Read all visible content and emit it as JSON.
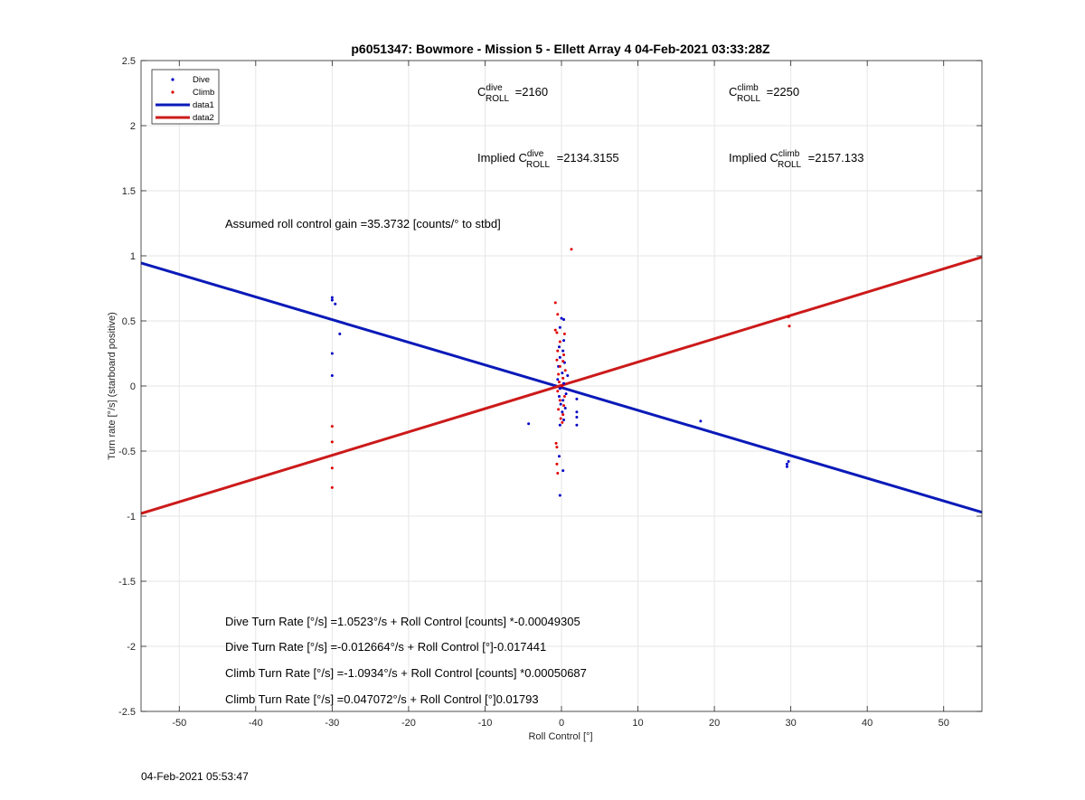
{
  "chart_data": {
    "type": "scatter",
    "title": "p6051347: Bowmore - Mission 5 - Ellett Array 4 04-Feb-2021 03:33:28Z",
    "xlabel": "Roll Control [°]",
    "ylabel": "Turn rate [°/s] (starboard positive)",
    "xlim": [
      -55,
      55
    ],
    "ylim": [
      -2.5,
      2.5
    ],
    "xticks": [
      "-50",
      "-40",
      "-30",
      "-20",
      "-10",
      "0",
      "10",
      "20",
      "30",
      "40",
      "50"
    ],
    "yticks": [
      "2.5",
      "2",
      "1.5",
      "1",
      "0.5",
      "0",
      "-0.5",
      "-1",
      "-1.5",
      "-2",
      "-2.5"
    ],
    "grid": true,
    "legend_position": "top-left",
    "legend": [
      "Dive",
      "Climb",
      "data1",
      "data2"
    ],
    "colors": {
      "dive": "#0000c8",
      "climb": "#e00000",
      "fit_dive": "#0a1ab8",
      "fit_climb": "#cc1a1a"
    },
    "series": [
      {
        "name": "Dive",
        "kind": "points",
        "points": [
          [
            -30,
            0.68
          ],
          [
            -30,
            0.66
          ],
          [
            -29.6,
            0.63
          ],
          [
            -29,
            0.4
          ],
          [
            -30,
            0.25
          ],
          [
            -30,
            0.08
          ],
          [
            -4.3,
            -0.29
          ],
          [
            0,
            0.52
          ],
          [
            0.3,
            0.51
          ],
          [
            -0.2,
            0.45
          ],
          [
            0.3,
            0.35
          ],
          [
            -0.3,
            0.3
          ],
          [
            0.2,
            0.27
          ],
          [
            -0.2,
            0.22
          ],
          [
            0.4,
            0.18
          ],
          [
            -0.4,
            0.15
          ],
          [
            0.1,
            0.1
          ],
          [
            0.8,
            0.08
          ],
          [
            -0.5,
            0.05
          ],
          [
            0.3,
            0.02
          ],
          [
            -0.2,
            -0.02
          ],
          [
            0.6,
            -0.06
          ],
          [
            -0.3,
            -0.08
          ],
          [
            0.2,
            -0.11
          ],
          [
            -0.1,
            -0.14
          ],
          [
            0.5,
            -0.17
          ],
          [
            0.1,
            -0.2
          ],
          [
            0.3,
            -0.26
          ],
          [
            -0.2,
            -0.3
          ],
          [
            -0.3,
            -0.54
          ],
          [
            0.2,
            -0.65
          ],
          [
            -0.2,
            -0.84
          ],
          [
            2,
            -0.1
          ],
          [
            2,
            -0.2
          ],
          [
            2,
            -0.24
          ],
          [
            2,
            -0.3
          ],
          [
            18.2,
            -0.27
          ],
          [
            29.5,
            -0.6
          ],
          [
            29.7,
            -0.58
          ],
          [
            29.5,
            -0.62
          ]
        ]
      },
      {
        "name": "Climb",
        "kind": "points",
        "points": [
          [
            1.3,
            1.05
          ],
          [
            -0.8,
            0.64
          ],
          [
            -0.5,
            0.55
          ],
          [
            -0.8,
            0.43
          ],
          [
            -0.6,
            0.41
          ],
          [
            0.4,
            0.4
          ],
          [
            -0.2,
            0.34
          ],
          [
            -0.5,
            0.27
          ],
          [
            0.3,
            0.24
          ],
          [
            -0.6,
            0.2
          ],
          [
            0.2,
            0.19
          ],
          [
            -0.2,
            0.15
          ],
          [
            0.5,
            0.12
          ],
          [
            -0.4,
            0.09
          ],
          [
            0.2,
            0.06
          ],
          [
            -0.3,
            0.03
          ],
          [
            0.1,
            0
          ],
          [
            -0.5,
            -0.04
          ],
          [
            0.4,
            -0.08
          ],
          [
            -0.2,
            -0.11
          ],
          [
            0.3,
            -0.15
          ],
          [
            -0.4,
            -0.18
          ],
          [
            0.2,
            -0.22
          ],
          [
            -0.1,
            -0.25
          ],
          [
            0.1,
            -0.28
          ],
          [
            -0.7,
            -0.44
          ],
          [
            -0.6,
            -0.47
          ],
          [
            -0.6,
            -0.6
          ],
          [
            -0.5,
            -0.67
          ],
          [
            -30,
            -0.31
          ],
          [
            -30,
            -0.43
          ],
          [
            -30,
            -0.63
          ],
          [
            -30,
            -0.78
          ],
          [
            29.8,
            0.46
          ],
          [
            29.7,
            0.53
          ]
        ]
      },
      {
        "name": "data1",
        "kind": "line",
        "points": [
          [
            -55,
            0.945
          ],
          [
            55,
            -0.97
          ]
        ]
      },
      {
        "name": "data2",
        "kind": "line",
        "points": [
          [
            -55,
            -0.98
          ],
          [
            55,
            0.99
          ]
        ]
      }
    ],
    "annotations": {
      "c_dive": {
        "prefix": "",
        "base": "C",
        "sup": "dive",
        "sub": "ROLL",
        "suffix": " =2160"
      },
      "c_climb": {
        "prefix": "",
        "base": "C",
        "sup": "climb",
        "sub": "ROLL",
        "suffix": " =2250"
      },
      "implied_dive": {
        "prefix": "Implied ",
        "base": "C",
        "sup": "dive",
        "sub": "ROLL",
        "suffix": " =2134.3155"
      },
      "implied_climb": {
        "prefix": "Implied ",
        "base": "C",
        "sup": "climb",
        "sub": "ROLL",
        "suffix": " =2157.133"
      },
      "gain": "Assumed roll control gain =35.3732 [counts/° to stbd]",
      "eq1": "Dive Turn Rate [°/s] =1.0523°/s + Roll Control [counts] *-0.00049305",
      "eq2": "Dive Turn Rate [°/s] =-0.012664°/s + Roll Control [°]-0.017441",
      "eq3": "Climb Turn Rate [°/s] =-1.0934°/s + Roll Control [counts] *0.00050687",
      "eq4": "Climb Turn Rate [°/s] =0.047072°/s + Roll Control [°]0.01793"
    }
  },
  "footer": {
    "timestamp": "04-Feb-2021 05:53:47"
  }
}
